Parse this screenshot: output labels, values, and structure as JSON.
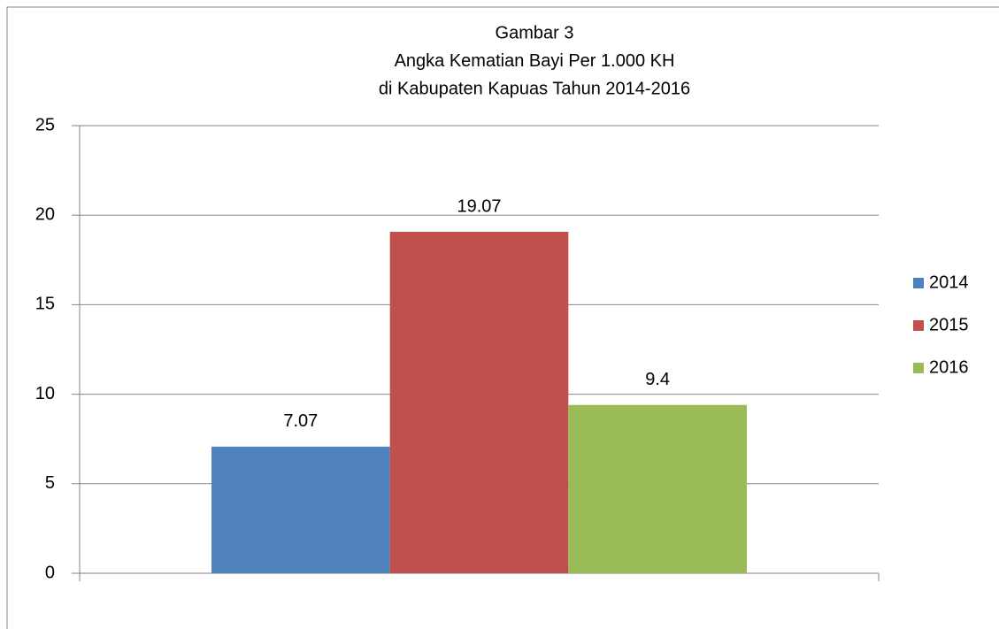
{
  "chart_data": {
    "type": "bar",
    "title": [
      "Gambar 3",
      "Angka Kematian Bayi Per 1.000 KH",
      "di Kabupaten Kapuas Tahun 2014-2016"
    ],
    "categories": [
      null
    ],
    "series": [
      {
        "name": "2014",
        "color": "#4f81bd",
        "values": [
          7.07
        ]
      },
      {
        "name": "2015",
        "color": "#c0504d",
        "values": [
          19.07
        ]
      },
      {
        "name": "2016",
        "color": "#9bbb59",
        "values": [
          9.4
        ]
      }
    ],
    "ylim": [
      0,
      25
    ],
    "yticks": [
      0,
      5,
      10,
      15,
      20,
      25
    ],
    "grid": true,
    "legend": "right",
    "data_labels": true
  }
}
